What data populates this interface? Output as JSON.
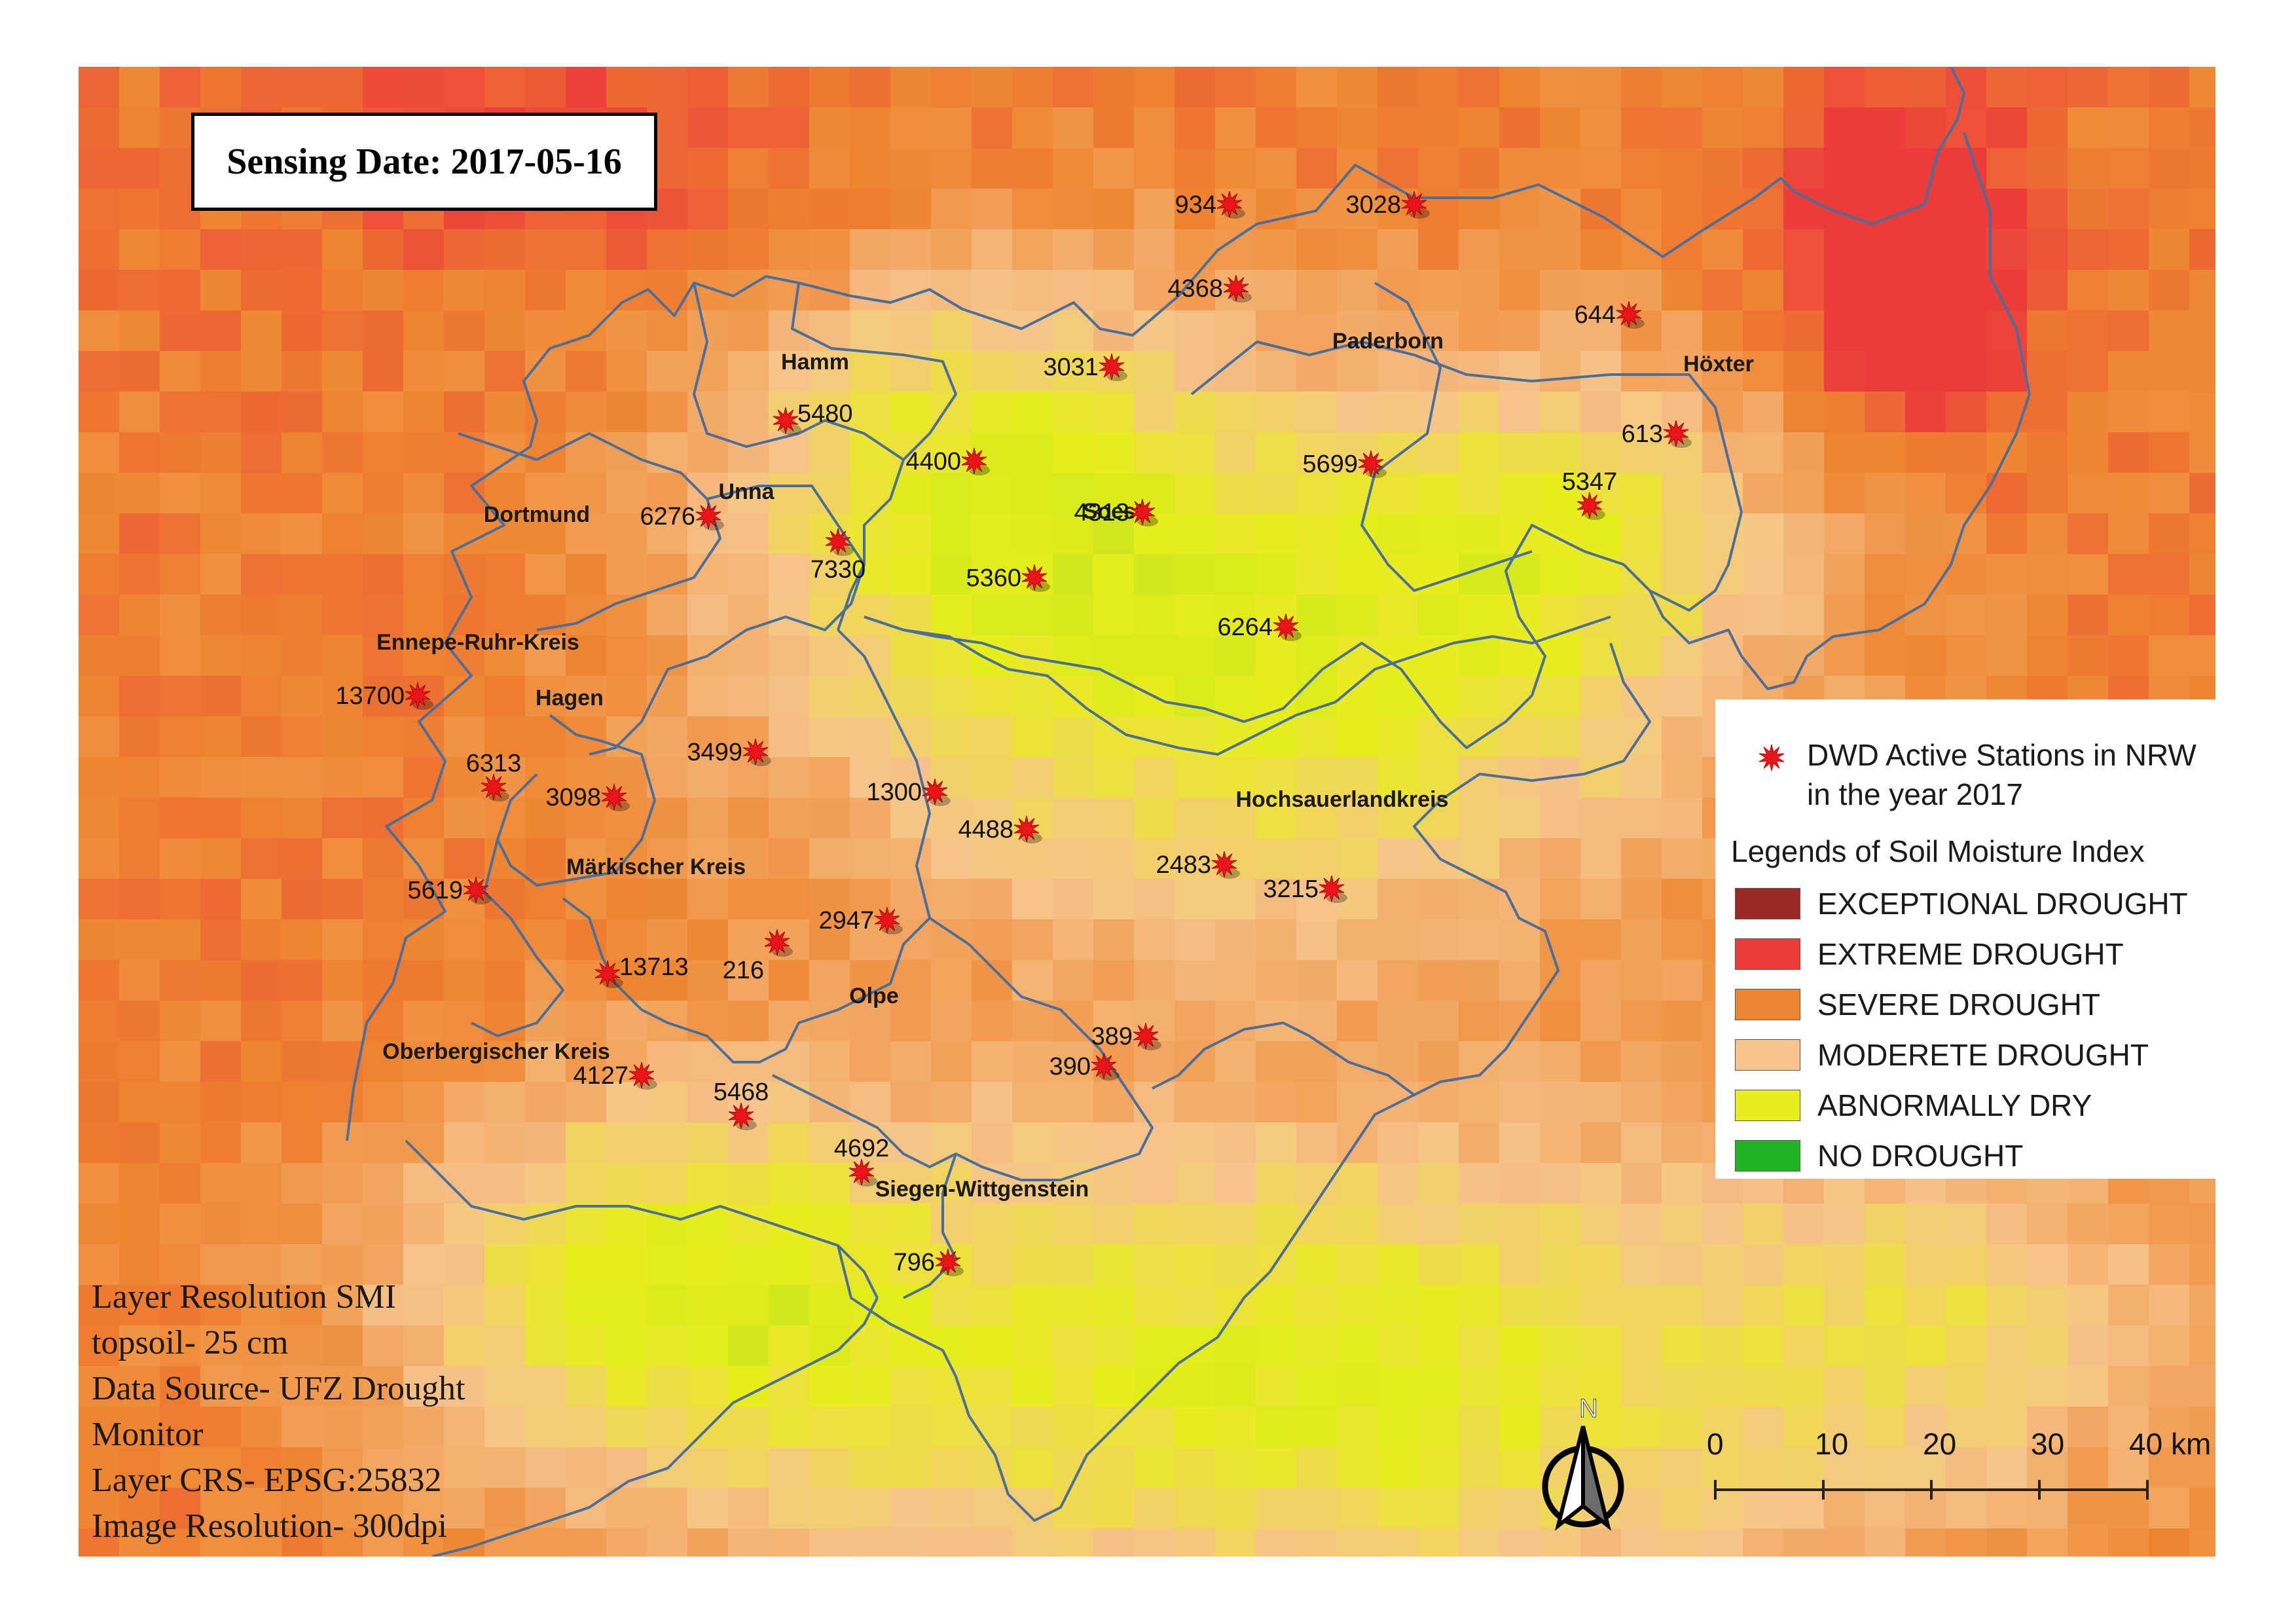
{
  "sensing_date": "Sensing Date: 2017-05-16",
  "colors": {
    "exceptional_drought": "#9b2a26",
    "extreme_drought": "#ec3b3b",
    "severe_drought": "#ee8530",
    "moderate_drought": "#f6c48c",
    "abnormally_dry": "#e8ee1c",
    "no_drought": "#22b322",
    "boundary": "#4a6f9c",
    "station": "#e8161b"
  },
  "districts": [
    {
      "id": "hamm",
      "name": "Hamm"
    },
    {
      "id": "unna",
      "name": "Unna"
    },
    {
      "id": "dortmund",
      "name": "Dortmund"
    },
    {
      "id": "soest",
      "name": "Soest"
    },
    {
      "id": "paderborn",
      "name": "Paderborn"
    },
    {
      "id": "hoexter",
      "name": "Höxter"
    },
    {
      "id": "ennepe-ruhr-kreis",
      "name": "Ennepe-Ruhr-Kreis"
    },
    {
      "id": "hagen",
      "name": "Hagen"
    },
    {
      "id": "hochsauerlandkreis",
      "name": "Hochsauerlandkreis"
    },
    {
      "id": "maerkischer-kreis",
      "name": "Märkischer Kreis"
    },
    {
      "id": "olpe",
      "name": "Olpe"
    },
    {
      "id": "oberbergischer-kreis",
      "name": "Oberbergischer Kreis"
    },
    {
      "id": "siegen-wittgenstein",
      "name": "Siegen-Wittgenstein"
    }
  ],
  "stations": [
    {
      "id": "934"
    },
    {
      "id": "3028"
    },
    {
      "id": "4368"
    },
    {
      "id": "644"
    },
    {
      "id": "3031"
    },
    {
      "id": "5480"
    },
    {
      "id": "613"
    },
    {
      "id": "4400"
    },
    {
      "id": "5699"
    },
    {
      "id": "5347"
    },
    {
      "id": "6276"
    },
    {
      "id": "4313"
    },
    {
      "id": "7330"
    },
    {
      "id": "5360"
    },
    {
      "id": "6264"
    },
    {
      "id": "13700"
    },
    {
      "id": "3499"
    },
    {
      "id": "6313"
    },
    {
      "id": "3098"
    },
    {
      "id": "1300"
    },
    {
      "id": "4488"
    },
    {
      "id": "2483"
    },
    {
      "id": "3215"
    },
    {
      "id": "5619"
    },
    {
      "id": "2947"
    },
    {
      "id": "216"
    },
    {
      "id": "13713"
    },
    {
      "id": "389"
    },
    {
      "id": "390"
    },
    {
      "id": "4127"
    },
    {
      "id": "5468"
    },
    {
      "id": "4692"
    },
    {
      "id": "796"
    }
  ],
  "legend": {
    "stations_label": "DWD Active Stations in NRW in the year 2017",
    "heading": "Legends of Soil Moisture Index",
    "items": [
      {
        "label": "EXCEPTIONAL DROUGHT",
        "color": "#9b2a26"
      },
      {
        "label": "EXTREME DROUGHT",
        "color": "#ec3b3b"
      },
      {
        "label": "SEVERE DROUGHT",
        "color": "#ee8530"
      },
      {
        "label": "MODERETE DROUGHT",
        "color": "#f6c48c"
      },
      {
        "label": "ABNORMALLY DRY",
        "color": "#e8ee1c"
      },
      {
        "label": "NO DROUGHT",
        "color": "#22b322"
      }
    ]
  },
  "info": {
    "line1": "Layer Resolution SMI",
    "line2": "topsoil- 25 cm",
    "line3": "Data Source- UFZ Drought",
    "line4": "Monitor",
    "line5": "Layer CRS- EPSG:25832",
    "line6": "Image Resolution- 300dpi"
  },
  "north_arrow": {
    "label": "N"
  },
  "scale_bar": {
    "ticks": [
      "0",
      "10",
      "20",
      "30",
      "40 km"
    ]
  }
}
